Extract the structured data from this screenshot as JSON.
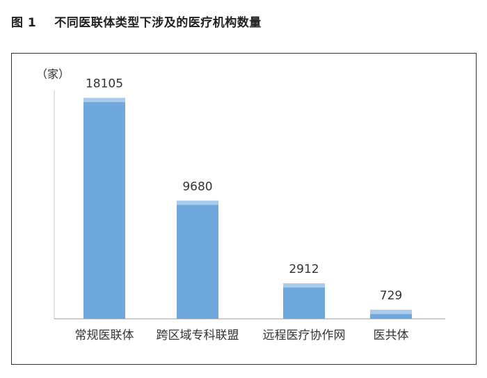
{
  "figure": {
    "label": "图 1",
    "title": "不同医联体类型下涉及的医疗机构数量"
  },
  "chart_data": {
    "type": "bar",
    "title": "不同医联体类型下涉及的医疗机构数量",
    "ylabel": "（家）",
    "xlabel": "",
    "categories": [
      "常规医联体",
      "跨区域专科联盟",
      "远程医疗协作网",
      "医共体"
    ],
    "values": [
      18105,
      9680,
      2912,
      729
    ],
    "ylim": [
      0,
      21000
    ],
    "grid": false,
    "bar_color": "#6ea8dc",
    "bar_top_color": "#a9ccee"
  }
}
